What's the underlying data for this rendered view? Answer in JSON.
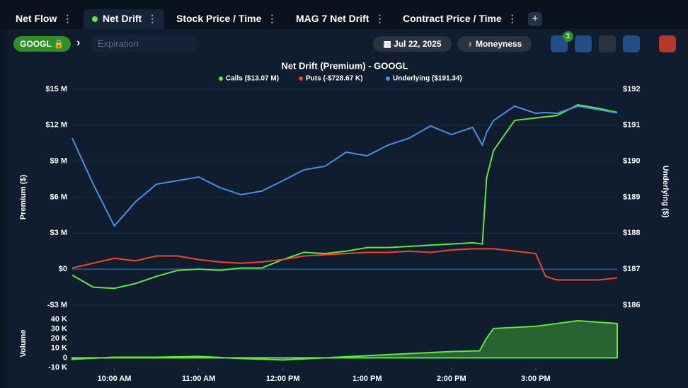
{
  "tabs": [
    {
      "label": "Net Flow"
    },
    {
      "label": "Net Drift"
    },
    {
      "label": "Stock Price / Time"
    },
    {
      "label": "MAG 7 Net Drift"
    },
    {
      "label": "Contract Price / Time"
    }
  ],
  "toolbar": {
    "symbol": "GOOGL",
    "expiration_placeholder": "Expiration",
    "date": "Jul 22, 2025",
    "moneyness": "Moneyness",
    "filter_badge": "1"
  },
  "chart_data": [
    {
      "type": "line",
      "title": "Net Drift (Premium) - GOOGL",
      "ylabel": "Premium ($)",
      "y2label": "Underlying ($)",
      "grid": true,
      "xlim": [
        "09:30",
        "15:58"
      ],
      "ylim": [
        -3,
        15
      ],
      "yticks": [
        {
          "value": -3,
          "label": "-$3 M"
        },
        {
          "value": 0,
          "label": "$0"
        },
        {
          "value": 3,
          "label": "$3 M"
        },
        {
          "value": 6,
          "label": "$6 M"
        },
        {
          "value": 9,
          "label": "$9 M"
        },
        {
          "value": 12,
          "label": "$12 M"
        },
        {
          "value": 15,
          "label": "$15 M"
        }
      ],
      "y2lim": [
        186,
        192
      ],
      "y2ticks": [
        {
          "value": 186,
          "label": "$186"
        },
        {
          "value": 187,
          "label": "$187"
        },
        {
          "value": 188,
          "label": "$188"
        },
        {
          "value": 189,
          "label": "$189"
        },
        {
          "value": 190,
          "label": "$190"
        },
        {
          "value": 191,
          "label": "$191"
        },
        {
          "value": 192,
          "label": "$192"
        }
      ],
      "x": [
        "09:30",
        "09:45",
        "10:00",
        "10:15",
        "10:30",
        "10:45",
        "11:00",
        "11:15",
        "11:30",
        "11:45",
        "12:00",
        "12:15",
        "12:30",
        "12:45",
        "13:00",
        "13:15",
        "13:30",
        "13:45",
        "14:00",
        "14:15",
        "14:22",
        "14:25",
        "14:30",
        "14:45",
        "15:00",
        "15:07",
        "15:15",
        "15:30",
        "15:45",
        "15:58"
      ],
      "series": [
        {
          "name": "Calls ($13.07 M)",
          "color": "#5ee83a",
          "values": [
            -0.5,
            -1.5,
            -1.6,
            -1.2,
            -0.6,
            -0.1,
            0,
            -0.1,
            0.1,
            0.1,
            0.8,
            1.4,
            1.3,
            1.5,
            1.8,
            1.8,
            1.9,
            2.0,
            2.1,
            2.2,
            2.1,
            7.6,
            9.9,
            12.4,
            12.6,
            12.7,
            12.8,
            13.7,
            13.4,
            13.07
          ]
        },
        {
          "name": "Puts (-$728.67 K)",
          "color": "#f0452c",
          "values": [
            0.1,
            0.5,
            0.9,
            0.7,
            1.1,
            1.1,
            0.8,
            0.6,
            0.5,
            0.6,
            0.8,
            1.1,
            1.2,
            1.3,
            1.4,
            1.4,
            1.5,
            1.4,
            1.6,
            1.7,
            1.7,
            1.7,
            1.7,
            1.5,
            1.3,
            -0.6,
            -0.9,
            -0.9,
            -0.9,
            -0.73
          ]
        },
        {
          "name": "Underlying ($191.34)",
          "color": "#4a8ee0",
          "axis": "y2",
          "values": [
            190.64,
            189.36,
            188.2,
            188.87,
            189.36,
            189.46,
            189.56,
            189.27,
            189.07,
            189.17,
            189.46,
            189.76,
            189.86,
            190.25,
            190.15,
            190.45,
            190.64,
            190.98,
            190.74,
            190.94,
            190.45,
            190.8,
            191.13,
            191.53,
            191.33,
            191.35,
            191.33,
            191.53,
            191.43,
            191.34
          ]
        }
      ]
    },
    {
      "type": "area",
      "ylabel": "Volume",
      "xlim": [
        "09:30",
        "15:58"
      ],
      "xticks": [
        {
          "value": "10:00",
          "label": "10:00 AM"
        },
        {
          "value": "11:00",
          "label": "11:00 AM"
        },
        {
          "value": "12:00",
          "label": "12:00 PM"
        },
        {
          "value": "13:00",
          "label": "1:00 PM"
        },
        {
          "value": "14:00",
          "label": "2:00 PM"
        },
        {
          "value": "15:00",
          "label": "3:00 PM"
        }
      ],
      "ylim": [
        -10,
        40
      ],
      "yticks": [
        {
          "value": -10,
          "label": "-10 K"
        },
        {
          "value": 0,
          "label": "0"
        },
        {
          "value": 10,
          "label": "10 K"
        },
        {
          "value": 20,
          "label": "20 K"
        },
        {
          "value": 30,
          "label": "30 K"
        },
        {
          "value": 40,
          "label": "40 K"
        }
      ],
      "x": [
        "09:30",
        "10:00",
        "10:30",
        "11:00",
        "11:30",
        "12:00",
        "12:30",
        "13:00",
        "13:30",
        "14:00",
        "14:20",
        "14:25",
        "14:30",
        "15:00",
        "15:30",
        "15:58"
      ],
      "series": [
        {
          "color": "#5ee83a",
          "values": [
            -1.5,
            0.7,
            0.7,
            1.5,
            -0.7,
            -2.2,
            0,
            2.2,
            4.4,
            6.5,
            7.3,
            20.4,
            30.5,
            32.7,
            38.5,
            35.6
          ]
        }
      ]
    }
  ]
}
